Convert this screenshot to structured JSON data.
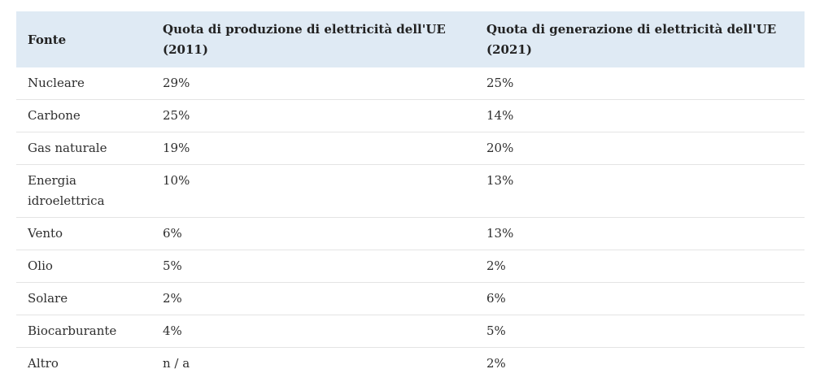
{
  "table": {
    "headers": [
      "Fonte",
      "Quota di produzione di elettricità dell'UE (2011)",
      "Quota di generazione di elettricità dell'UE (2021)"
    ],
    "rows": [
      [
        "Nucleare",
        "29%",
        "25%"
      ],
      [
        "Carbone",
        "25%",
        "14%"
      ],
      [
        "Gas naturale",
        "19%",
        "20%"
      ],
      [
        "Energia idroelettrica",
        "10%",
        "13%"
      ],
      [
        "Vento",
        "6%",
        "13%"
      ],
      [
        "Olio",
        "5%",
        "2%"
      ],
      [
        "Solare",
        "2%",
        "6%"
      ],
      [
        "Biocarburante",
        "4%",
        "5%"
      ],
      [
        "Altro",
        "n / a",
        "2%"
      ]
    ]
  }
}
